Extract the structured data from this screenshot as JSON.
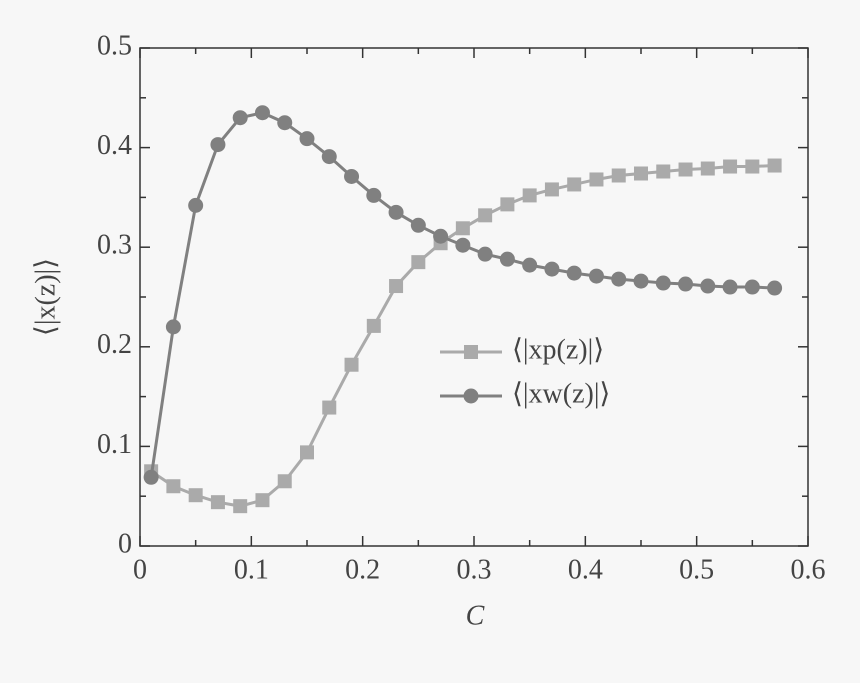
{
  "chart_data": {
    "type": "line",
    "xlabel": "C",
    "ylabel": "⟨|x(z)|⟩",
    "x": [
      0.01,
      0.03,
      0.05,
      0.07,
      0.09,
      0.11,
      0.13,
      0.15,
      0.17,
      0.19,
      0.21,
      0.23,
      0.25,
      0.27,
      0.29,
      0.31,
      0.33,
      0.35,
      0.37,
      0.39,
      0.41,
      0.43,
      0.45,
      0.47,
      0.49,
      0.51,
      0.53,
      0.55,
      0.57
    ],
    "series": [
      {
        "name": "⟨|xp(z)|⟩",
        "color": "#aaaaaa",
        "marker": "square",
        "values": [
          0.075,
          0.06,
          0.051,
          0.044,
          0.04,
          0.046,
          0.065,
          0.094,
          0.139,
          0.182,
          0.221,
          0.261,
          0.285,
          0.304,
          0.319,
          0.332,
          0.343,
          0.352,
          0.358,
          0.363,
          0.368,
          0.372,
          0.374,
          0.376,
          0.378,
          0.379,
          0.381,
          0.381,
          0.382
        ]
      },
      {
        "name": "⟨|xw(z)|⟩",
        "color": "#808080",
        "marker": "circle",
        "values": [
          0.069,
          0.22,
          0.342,
          0.403,
          0.43,
          0.435,
          0.425,
          0.409,
          0.391,
          0.371,
          0.352,
          0.335,
          0.322,
          0.311,
          0.302,
          0.293,
          0.288,
          0.282,
          0.278,
          0.274,
          0.271,
          0.268,
          0.266,
          0.264,
          0.263,
          0.261,
          0.26,
          0.26,
          0.259
        ]
      }
    ],
    "xlim": [
      0,
      0.6
    ],
    "ylim": [
      0,
      0.5
    ],
    "xticks": [
      0,
      0.1,
      0.2,
      0.3,
      0.4,
      0.5,
      0.6
    ],
    "yticks": [
      0,
      0.1,
      0.2,
      0.3,
      0.4,
      0.5
    ],
    "xminorticks": [
      0.05,
      0.15,
      0.25,
      0.35,
      0.45,
      0.55
    ],
    "yminorticks": [
      0.05,
      0.15,
      0.25,
      0.35,
      0.45
    ],
    "legend": "center right",
    "grid": false
  }
}
